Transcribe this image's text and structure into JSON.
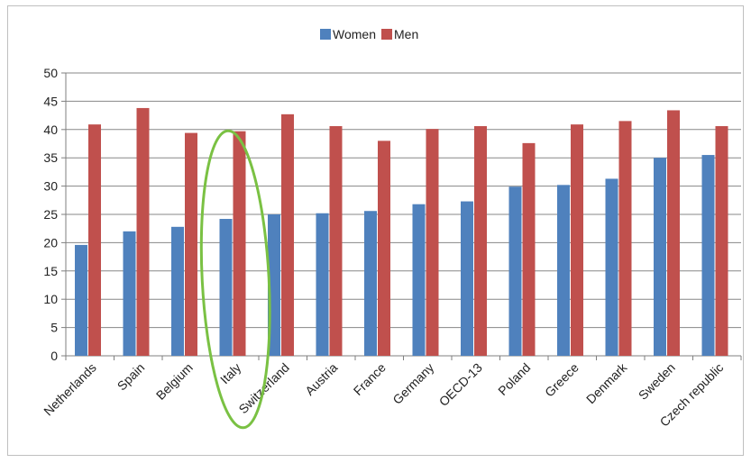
{
  "chart_data": {
    "type": "bar",
    "categories": [
      "Netherlands",
      "Spain",
      "Belgium",
      "Italy",
      "Switzerland",
      "Austria",
      "France",
      "Germany",
      "OECD-13",
      "Poland",
      "Greece",
      "Denmark",
      "Sweden",
      "Czech republic"
    ],
    "series": [
      {
        "name": "Women",
        "color": "#4f81bd",
        "values": [
          19.6,
          22.0,
          22.8,
          24.2,
          25.0,
          25.2,
          25.6,
          26.8,
          27.3,
          29.9,
          30.2,
          31.3,
          35.0,
          35.5
        ]
      },
      {
        "name": "Men",
        "color": "#c0504d",
        "values": [
          40.9,
          43.8,
          39.4,
          39.7,
          42.7,
          40.6,
          38.0,
          40.1,
          40.6,
          37.6,
          40.9,
          41.5,
          43.4,
          40.6
        ]
      }
    ],
    "ylim": [
      0,
      50
    ],
    "yticks": [
      0,
      5,
      10,
      15,
      20,
      25,
      30,
      35,
      40,
      45,
      50
    ],
    "grid": true,
    "legend": "top-center",
    "annotation": {
      "shape": "ellipse",
      "target": "Italy",
      "color": "#7ac143"
    }
  }
}
